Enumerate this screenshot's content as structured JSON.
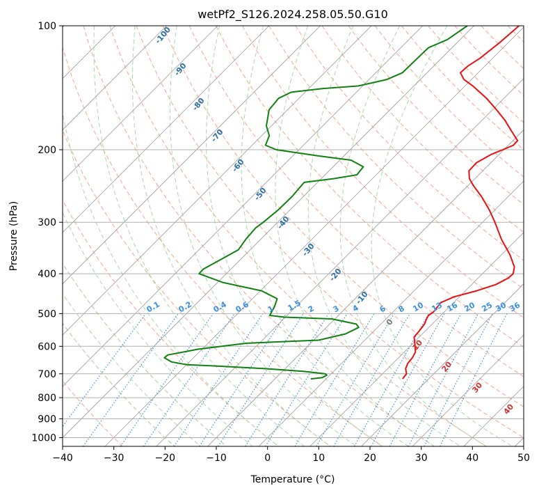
{
  "chart_data": {
    "type": "line",
    "title": "wetPf2_S126.2024.258.05.50.G10",
    "xlabel": "Temperature (°C)",
    "ylabel": "Pressure (hPa)",
    "xlim": [
      -40,
      50
    ],
    "ylim": [
      1050,
      100
    ],
    "y_scale": "log",
    "skew_x": true,
    "grid": true,
    "x_ticks": [
      -40,
      -30,
      -20,
      -10,
      0,
      10,
      20,
      30,
      40,
      50
    ],
    "y_ticks": [
      100,
      200,
      300,
      400,
      500,
      600,
      700,
      800,
      900,
      1000
    ],
    "colors": {
      "temperature": "#e81010",
      "dewpoint": "#108010",
      "dry_adiabat_labels": "#2b6ea8",
      "mixing_ratio_labels": "#3a8fe0",
      "moist_adiabat_labels": "#d03030",
      "grid": "#b0b0b0",
      "isotherm": "#999999"
    },
    "dry_adiabat_labels": [
      "-100",
      "-90",
      "-80",
      "-70",
      "-60",
      "-50",
      "-40",
      "-30",
      "-20",
      "-10"
    ],
    "mixing_ratio_labels": [
      "0.1",
      "0.2",
      "0.4",
      "0.6",
      "1",
      "1.5",
      "2",
      "3",
      "4",
      "6",
      "8",
      "10",
      "13",
      "16",
      "20",
      "25",
      "30",
      "36"
    ],
    "moist_adiabat_labels": [
      "0",
      "10",
      "20",
      "30",
      "40"
    ],
    "series": [
      {
        "id": "temperature",
        "points": [
          {
            "p": 720,
            "t": 14.9
          },
          {
            "p": 700,
            "t": 14.7
          },
          {
            "p": 680,
            "t": 13.5
          },
          {
            "p": 660,
            "t": 12.9
          },
          {
            "p": 640,
            "t": 12.7
          },
          {
            "p": 620,
            "t": 12.2
          },
          {
            "p": 600,
            "t": 11.0
          },
          {
            "p": 580,
            "t": 9.7
          },
          {
            "p": 570,
            "t": 9.0
          },
          {
            "p": 550,
            "t": 8.8
          },
          {
            "p": 530,
            "t": 8.5
          },
          {
            "p": 515,
            "t": 7.9
          },
          {
            "p": 505,
            "t": 7.6
          },
          {
            "p": 495,
            "t": 7.9
          },
          {
            "p": 470,
            "t": 7.5
          },
          {
            "p": 455,
            "t": 9.0
          },
          {
            "p": 440,
            "t": 12.2
          },
          {
            "p": 425,
            "t": 14.7
          },
          {
            "p": 410,
            "t": 15.9
          },
          {
            "p": 400,
            "t": 16.0
          },
          {
            "p": 385,
            "t": 14.9
          },
          {
            "p": 360,
            "t": 11.7
          },
          {
            "p": 330,
            "t": 7.0
          },
          {
            "p": 300,
            "t": 2.4
          },
          {
            "p": 280,
            "t": -1.1
          },
          {
            "p": 260,
            "t": -5.2
          },
          {
            "p": 245,
            "t": -8.8
          },
          {
            "p": 235,
            "t": -11.1
          },
          {
            "p": 225,
            "t": -12.7
          },
          {
            "p": 215,
            "t": -12.8
          },
          {
            "p": 205,
            "t": -11.5
          },
          {
            "p": 200,
            "t": -10.2
          },
          {
            "p": 195,
            "t": -9.0
          },
          {
            "p": 190,
            "t": -9.1
          },
          {
            "p": 180,
            "t": -12.2
          },
          {
            "p": 170,
            "t": -15.4
          },
          {
            "p": 160,
            "t": -19.2
          },
          {
            "p": 150,
            "t": -23.4
          },
          {
            "p": 140,
            "t": -28.5
          },
          {
            "p": 135,
            "t": -31.5
          },
          {
            "p": 130,
            "t": -33.5
          },
          {
            "p": 125,
            "t": -33.3
          },
          {
            "p": 120,
            "t": -32.5
          },
          {
            "p": 110,
            "t": -31.7
          },
          {
            "p": 100,
            "t": -31.2
          }
        ]
      },
      {
        "id": "dewpoint",
        "points": [
          {
            "p": 720,
            "t": -3.0
          },
          {
            "p": 715,
            "t": -1.0
          },
          {
            "p": 705,
            "t": -0.6
          },
          {
            "p": 700,
            "t": -1.2
          },
          {
            "p": 690,
            "t": -6.0
          },
          {
            "p": 680,
            "t": -14.0
          },
          {
            "p": 670,
            "t": -24.0
          },
          {
            "p": 665,
            "t": -30.0
          },
          {
            "p": 655,
            "t": -33.5
          },
          {
            "p": 640,
            "t": -35.7
          },
          {
            "p": 630,
            "t": -35.6
          },
          {
            "p": 610,
            "t": -30.8
          },
          {
            "p": 590,
            "t": -22.5
          },
          {
            "p": 580,
            "t": -9.0
          },
          {
            "p": 560,
            "t": -5.0
          },
          {
            "p": 540,
            "t": -3.7
          },
          {
            "p": 530,
            "t": -4.8
          },
          {
            "p": 515,
            "t": -10.6
          },
          {
            "p": 510,
            "t": -20.1
          },
          {
            "p": 505,
            "t": -23.4
          },
          {
            "p": 480,
            "t": -24.2
          },
          {
            "p": 460,
            "t": -25.2
          },
          {
            "p": 440,
            "t": -29.8
          },
          {
            "p": 420,
            "t": -39.0
          },
          {
            "p": 400,
            "t": -45.3
          },
          {
            "p": 390,
            "t": -45.4
          },
          {
            "p": 370,
            "t": -43.9
          },
          {
            "p": 350,
            "t": -42.3
          },
          {
            "p": 330,
            "t": -42.9
          },
          {
            "p": 310,
            "t": -43.2
          },
          {
            "p": 300,
            "t": -42.8
          },
          {
            "p": 280,
            "t": -42.3
          },
          {
            "p": 260,
            "t": -42.2
          },
          {
            "p": 240,
            "t": -42.6
          },
          {
            "p": 235,
            "t": -37.5
          },
          {
            "p": 230,
            "t": -33.8
          },
          {
            "p": 220,
            "t": -34.1
          },
          {
            "p": 212,
            "t": -37.8
          },
          {
            "p": 207,
            "t": -45.0
          },
          {
            "p": 200,
            "t": -54.4
          },
          {
            "p": 195,
            "t": -57.4
          },
          {
            "p": 185,
            "t": -58.5
          },
          {
            "p": 175,
            "t": -61.0
          },
          {
            "p": 160,
            "t": -63.6
          },
          {
            "p": 150,
            "t": -64.0
          },
          {
            "p": 145,
            "t": -62.7
          },
          {
            "p": 142,
            "t": -57.2
          },
          {
            "p": 140,
            "t": -50.8
          },
          {
            "p": 135,
            "t": -46.5
          },
          {
            "p": 130,
            "t": -44.8
          },
          {
            "p": 120,
            "t": -44.7
          },
          {
            "p": 113,
            "t": -44.6
          },
          {
            "p": 108,
            "t": -42.5
          },
          {
            "p": 100,
            "t": -41.3
          }
        ]
      }
    ]
  }
}
